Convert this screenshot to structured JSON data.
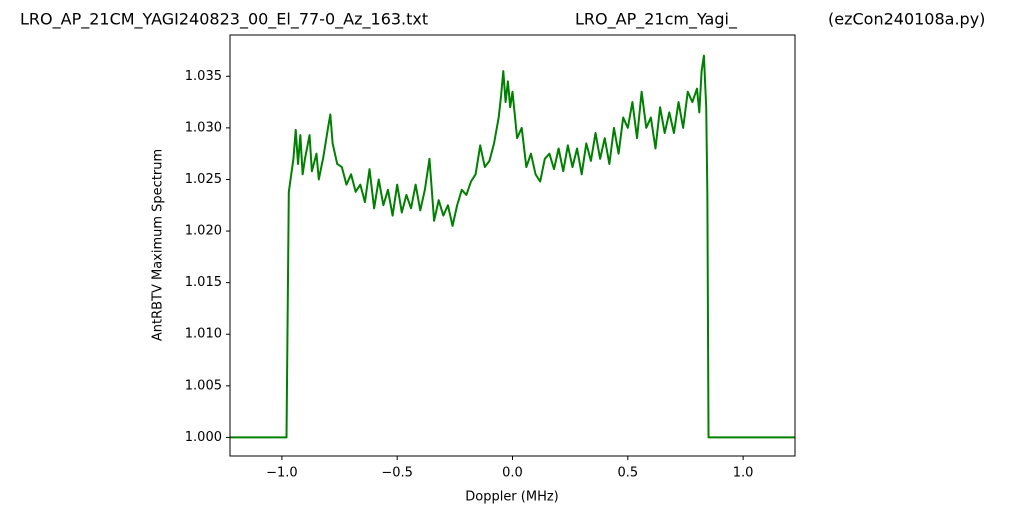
{
  "chart_data": {
    "type": "line",
    "titles": [
      "LRO_AP_21CM_YAGI240823_00_El_77-0_Az_163.txt",
      "LRO_AP_21cm_Yagi_",
      "(ezCon240108a.py)"
    ],
    "xlabel": "Doppler (MHz)",
    "ylabel": "AntRBTV Maximum Spectrum",
    "xlim": [
      -1.225,
      1.225
    ],
    "ylim": [
      0.9982,
      1.039
    ],
    "xticks": [
      {
        "value": -1.0,
        "label": "−1.0"
      },
      {
        "value": -0.5,
        "label": "−0.5"
      },
      {
        "value": 0,
        "label": "0.0"
      },
      {
        "value": 0.5,
        "label": "0.5"
      },
      {
        "value": 1.0,
        "label": "1.0"
      }
    ],
    "yticks": [
      {
        "value": 1.0,
        "label": "1.000"
      },
      {
        "value": 1.005,
        "label": "1.005"
      },
      {
        "value": 1.01,
        "label": "1.010"
      },
      {
        "value": 1.015,
        "label": "1.015"
      },
      {
        "value": 1.02,
        "label": "1.020"
      },
      {
        "value": 1.025,
        "label": "1.025"
      },
      {
        "value": 1.03,
        "label": "1.030"
      },
      {
        "value": 1.035,
        "label": "1.035"
      }
    ],
    "grid": false,
    "series": [
      {
        "color": "#008000",
        "x": [
          -1.225,
          -0.98,
          -0.97,
          -0.95,
          -0.94,
          -0.93,
          -0.92,
          -0.91,
          -0.9,
          -0.88,
          -0.87,
          -0.85,
          -0.84,
          -0.82,
          -0.8,
          -0.79,
          -0.78,
          -0.76,
          -0.74,
          -0.72,
          -0.7,
          -0.68,
          -0.66,
          -0.64,
          -0.62,
          -0.6,
          -0.58,
          -0.56,
          -0.54,
          -0.52,
          -0.5,
          -0.48,
          -0.46,
          -0.44,
          -0.42,
          -0.4,
          -0.38,
          -0.36,
          -0.34,
          -0.32,
          -0.3,
          -0.28,
          -0.26,
          -0.24,
          -0.22,
          -0.2,
          -0.18,
          -0.16,
          -0.14,
          -0.12,
          -0.1,
          -0.08,
          -0.06,
          -0.05,
          -0.04,
          -0.03,
          -0.02,
          -0.01,
          0.0,
          0.02,
          0.04,
          0.06,
          0.08,
          0.1,
          0.12,
          0.14,
          0.16,
          0.18,
          0.2,
          0.22,
          0.24,
          0.26,
          0.28,
          0.3,
          0.32,
          0.34,
          0.36,
          0.38,
          0.4,
          0.42,
          0.44,
          0.46,
          0.48,
          0.5,
          0.52,
          0.54,
          0.56,
          0.58,
          0.6,
          0.62,
          0.64,
          0.66,
          0.68,
          0.7,
          0.72,
          0.74,
          0.76,
          0.78,
          0.8,
          0.81,
          0.82,
          0.83,
          0.84,
          0.845,
          0.85,
          1.225
        ],
        "values": [
          1.0,
          1.0,
          1.0238,
          1.027,
          1.0298,
          1.0265,
          1.0293,
          1.0255,
          1.027,
          1.0293,
          1.0258,
          1.0275,
          1.025,
          1.0272,
          1.03,
          1.0313,
          1.0285,
          1.0265,
          1.0262,
          1.0245,
          1.0255,
          1.0238,
          1.0245,
          1.0228,
          1.026,
          1.0222,
          1.025,
          1.0225,
          1.024,
          1.0215,
          1.0245,
          1.0218,
          1.0235,
          1.0222,
          1.0245,
          1.022,
          1.024,
          1.027,
          1.021,
          1.023,
          1.0215,
          1.0225,
          1.0205,
          1.0225,
          1.024,
          1.0235,
          1.0248,
          1.0255,
          1.0283,
          1.0262,
          1.0268,
          1.0285,
          1.031,
          1.033,
          1.0355,
          1.0325,
          1.0345,
          1.032,
          1.0335,
          1.029,
          1.03,
          1.0262,
          1.0275,
          1.0255,
          1.0248,
          1.027,
          1.0275,
          1.026,
          1.028,
          1.0258,
          1.0283,
          1.0262,
          1.028,
          1.0255,
          1.0285,
          1.0268,
          1.0295,
          1.027,
          1.029,
          1.0265,
          1.03,
          1.0275,
          1.031,
          1.03,
          1.0325,
          1.029,
          1.0335,
          1.03,
          1.031,
          1.028,
          1.032,
          1.0295,
          1.0315,
          1.0295,
          1.0325,
          1.03,
          1.0335,
          1.0325,
          1.0338,
          1.0315,
          1.0355,
          1.037,
          1.032,
          1.0235,
          1.0,
          1.0
        ]
      }
    ]
  }
}
